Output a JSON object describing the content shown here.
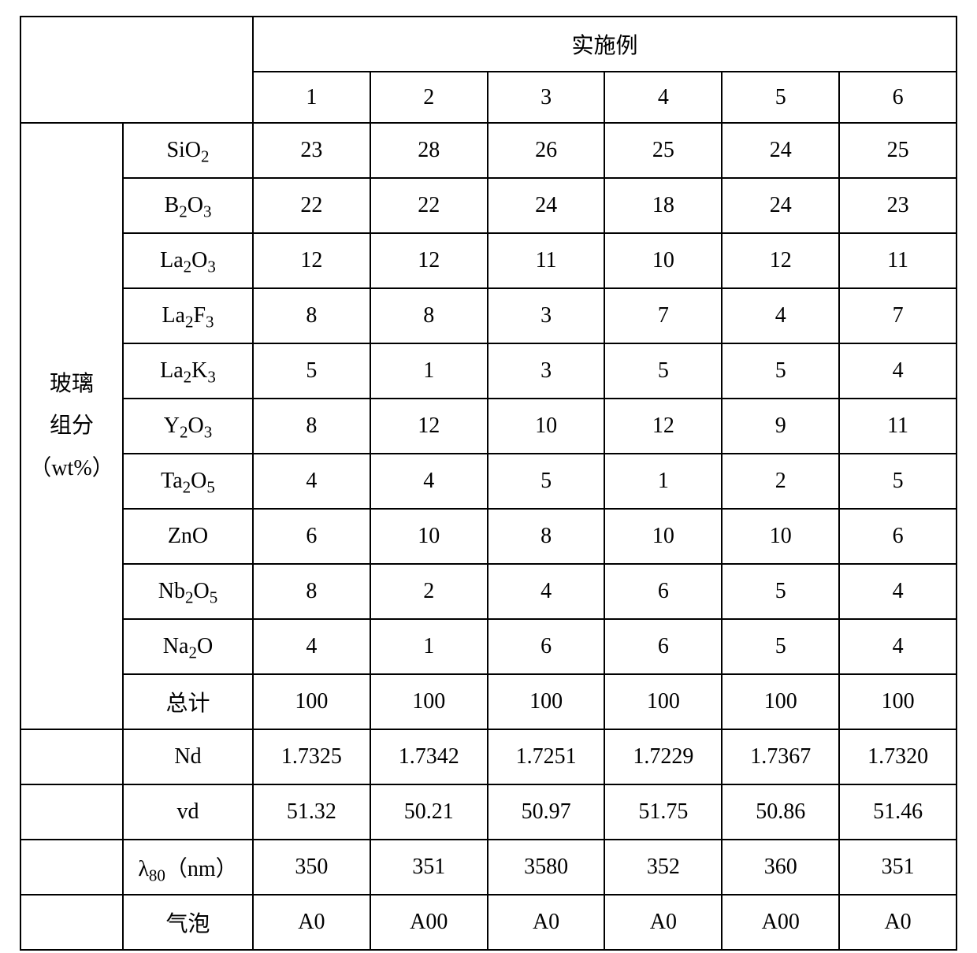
{
  "table": {
    "type": "table",
    "border_color": "#000000",
    "background_color": "#ffffff",
    "text_color": "#000000",
    "font_family": "Times New Roman, SimSun, serif",
    "base_font_size_pt": 21,
    "header": {
      "group_label": "实施例",
      "columns": [
        "1",
        "2",
        "3",
        "4",
        "5",
        "6"
      ]
    },
    "side_header": {
      "label_lines": [
        "玻璃",
        "组分",
        "（wt%）"
      ]
    },
    "component_rows": [
      {
        "label_html": "SiO<sub>2</sub>",
        "values": [
          "23",
          "28",
          "26",
          "25",
          "24",
          "25"
        ]
      },
      {
        "label_html": "B<sub>2</sub>O<sub>3</sub>",
        "values": [
          "22",
          "22",
          "24",
          "18",
          "24",
          "23"
        ]
      },
      {
        "label_html": "La<sub>2</sub>O<sub>3</sub>",
        "values": [
          "12",
          "12",
          "11",
          "10",
          "12",
          "11"
        ]
      },
      {
        "label_html": "La<sub>2</sub>F<sub>3</sub>",
        "values": [
          "8",
          "8",
          "3",
          "7",
          "4",
          "7"
        ]
      },
      {
        "label_html": "La<sub>2</sub>K<sub>3</sub>",
        "values": [
          "5",
          "1",
          "3",
          "5",
          "5",
          "4"
        ]
      },
      {
        "label_html": "Y<sub>2</sub>O<sub>3</sub>",
        "values": [
          "8",
          "12",
          "10",
          "12",
          "9",
          "11"
        ]
      },
      {
        "label_html": "Ta<sub>2</sub>O<sub>5</sub>",
        "values": [
          "4",
          "4",
          "5",
          "1",
          "2",
          "5"
        ]
      },
      {
        "label_html": "ZnO",
        "values": [
          "6",
          "10",
          "8",
          "10",
          "10",
          "6"
        ]
      },
      {
        "label_html": "Nb<sub>2</sub>O<sub>5</sub>",
        "values": [
          "8",
          "2",
          "4",
          "6",
          "5",
          "4"
        ]
      },
      {
        "label_html": "Na<sub>2</sub>O",
        "values": [
          "4",
          "1",
          "6",
          "6",
          "5",
          "4"
        ]
      },
      {
        "label_html": "总计",
        "values": [
          "100",
          "100",
          "100",
          "100",
          "100",
          "100"
        ]
      }
    ],
    "property_rows": [
      {
        "label_html": "Nd",
        "values": [
          "1.7325",
          "1.7342",
          "1.7251",
          "1.7229",
          "1.7367",
          "1.7320"
        ]
      },
      {
        "label_html": "vd",
        "values": [
          "51.32",
          "50.21",
          "50.97",
          "51.75",
          "50.86",
          "51.46"
        ]
      },
      {
        "label_html": "λ<sub>80</sub>（nm）",
        "values": [
          "350",
          "351",
          "3580",
          "352",
          "360",
          "351"
        ]
      },
      {
        "label_html": "气泡",
        "values": [
          "A0",
          "A00",
          "A0",
          "A0",
          "A00",
          "A0"
        ]
      }
    ]
  }
}
